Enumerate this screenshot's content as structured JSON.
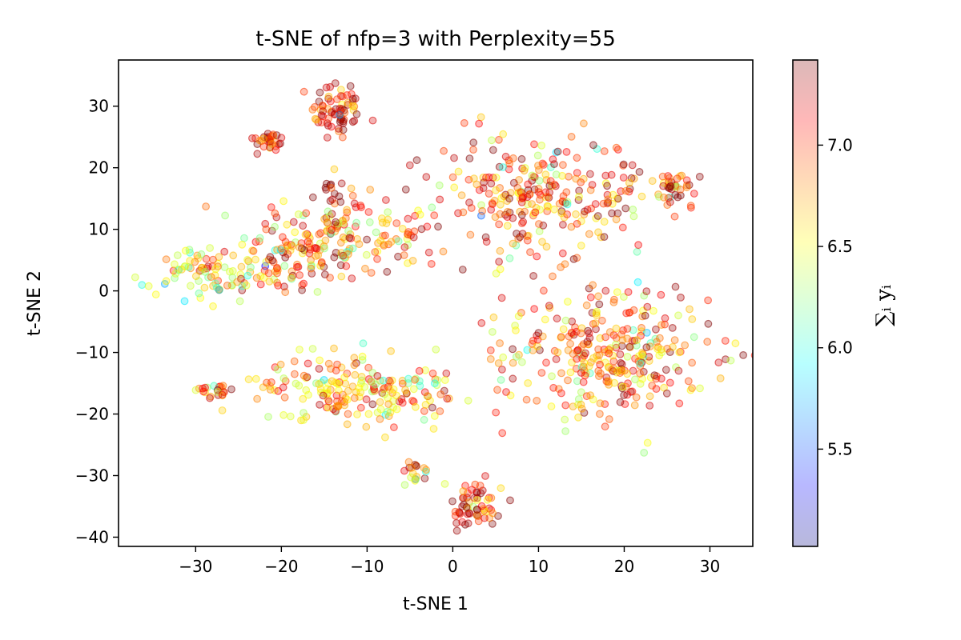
{
  "chart_data": {
    "type": "scatter",
    "title": "t-SNE of nfp=3 with Perplexity=55",
    "xlabel": "t-SNE 1",
    "ylabel": "t-SNE 2",
    "xlim": [
      -39,
      35
    ],
    "ylim": [
      -41.5,
      37.5
    ],
    "xticks": [
      -30,
      -20,
      -10,
      0,
      10,
      20,
      30
    ],
    "yticks": [
      -40,
      -30,
      -20,
      -10,
      0,
      10,
      20,
      30
    ],
    "grid": false,
    "legend": "none",
    "marker_alpha": 0.3,
    "colormap": "jet",
    "colorbar": {
      "label": "∑ᵢ yᵢ",
      "range": [
        5.02,
        7.42
      ],
      "ticks": [
        5.5,
        6.0,
        6.5,
        7.0
      ]
    },
    "clusters": [
      {
        "cx": -13.5,
        "cy": 29.5,
        "sx": 1.5,
        "sy": 2.5,
        "n": 70,
        "mean_value": 7.1
      },
      {
        "cx": -21.5,
        "cy": 24.2,
        "sx": 1.1,
        "sy": 0.9,
        "n": 30,
        "mean_value": 7.2
      },
      {
        "cx": -13,
        "cy": 9,
        "sx": 5.5,
        "sy": 3.2,
        "n": 170,
        "mean_value": 6.8
      },
      {
        "cx": -28,
        "cy": 3,
        "sx": 4,
        "sy": 2,
        "n": 100,
        "mean_value": 6.6
      },
      {
        "cx": -18,
        "cy": 4,
        "sx": 2.5,
        "sy": 2,
        "n": 40,
        "mean_value": 7.0
      },
      {
        "cx": 9,
        "cy": 15,
        "sx": 5.5,
        "sy": 5.5,
        "n": 240,
        "mean_value": 6.9
      },
      {
        "cx": 25.5,
        "cy": 16.5,
        "sx": 1.6,
        "sy": 1.6,
        "n": 40,
        "mean_value": 7.1
      },
      {
        "cx": 20,
        "cy": 16,
        "sx": 1.5,
        "sy": 3.5,
        "n": 30,
        "mean_value": 7.2
      },
      {
        "cx": 18,
        "cy": -10,
        "sx": 6,
        "sy": 5.5,
        "n": 320,
        "mean_value": 6.9
      },
      {
        "cx": -11,
        "cy": -16,
        "sx": 6,
        "sy": 2.6,
        "n": 200,
        "mean_value": 6.7
      },
      {
        "cx": -28,
        "cy": -16.2,
        "sx": 1.3,
        "sy": 0.6,
        "n": 22,
        "mean_value": 7.0
      },
      {
        "cx": 2.5,
        "cy": -34.5,
        "sx": 1.7,
        "sy": 1.7,
        "n": 60,
        "mean_value": 7.1
      },
      {
        "cx": -4.5,
        "cy": -29.5,
        "sx": 0.7,
        "sy": 1.4,
        "n": 18,
        "mean_value": 7.0
      },
      {
        "cx": -14,
        "cy": 17.5,
        "sx": 0.7,
        "sy": 2.0,
        "n": 12,
        "mean_value": 7.3
      }
    ]
  }
}
